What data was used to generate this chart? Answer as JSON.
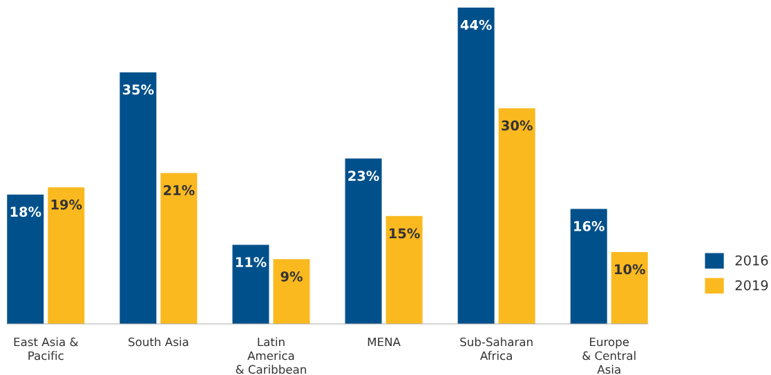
{
  "chart_data": {
    "type": "bar",
    "categories": [
      "East Asia &\nPacific",
      "South Asia",
      "Latin\nAmerica\n& Caribbean",
      "MENA",
      "Sub-Saharan\nAfrica",
      "Europe\n& Central\nAsia"
    ],
    "series": [
      {
        "name": "2016",
        "color": "#00508c",
        "values": [
          18,
          35,
          11,
          23,
          44,
          16
        ],
        "value_labels": [
          "18%",
          "35%",
          "11%",
          "23%",
          "44%",
          "16%"
        ]
      },
      {
        "name": "2019",
        "color": "#fbb920",
        "values": [
          19,
          21,
          9,
          15,
          30,
          10
        ],
        "value_labels": [
          "19%",
          "21%",
          "9%",
          "15%",
          "30%",
          "10%"
        ]
      }
    ],
    "legend": "right",
    "grid": false
  }
}
